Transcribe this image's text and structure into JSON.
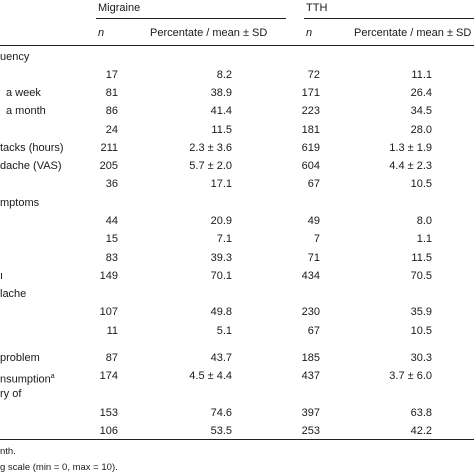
{
  "header": {
    "group1": "Migraine",
    "group2": "TTH",
    "n_label": "n",
    "stat_label": "Percentate / mean ± SD"
  },
  "rows": [
    {
      "label": "uency",
      "indent": false,
      "m_n": "",
      "m_p": "",
      "t_n": "",
      "t_p": ""
    },
    {
      "label": "",
      "indent": false,
      "m_n": "17",
      "m_p": "8.2",
      "t_n": "72",
      "t_p": "11.1"
    },
    {
      "label": "a week",
      "indent": true,
      "m_n": "81",
      "m_p": "38.9",
      "t_n": "171",
      "t_p": "26.4"
    },
    {
      "label": "a month",
      "indent": true,
      "m_n": "86",
      "m_p": "41.4",
      "t_n": "223",
      "t_p": "34.5"
    },
    {
      "label": "",
      "indent": false,
      "m_n": "24",
      "m_p": "11.5",
      "t_n": "181",
      "t_p": "28.0"
    },
    {
      "label": "tacks (hours)",
      "indent": false,
      "m_n": "211",
      "m_p": "2.3 ± 3.6",
      "t_n": "619",
      "t_p": "1.3 ± 1.9"
    },
    {
      "label": "dache (VAS)",
      "indent": false,
      "m_n": "205",
      "m_p": "5.7 ± 2.0",
      "t_n": "604",
      "t_p": "4.4 ± 2.3"
    },
    {
      "label": "",
      "indent": false,
      "m_n": "36",
      "m_p": "17.1",
      "t_n": "67",
      "t_p": "10.5"
    },
    {
      "label": "mptoms",
      "indent": false,
      "m_n": "",
      "m_p": "",
      "t_n": "",
      "t_p": ""
    },
    {
      "label": "",
      "indent": false,
      "m_n": "44",
      "m_p": "20.9",
      "t_n": "49",
      "t_p": "8.0"
    },
    {
      "label": "",
      "indent": false,
      "m_n": "15",
      "m_p": "7.1",
      "t_n": "7",
      "t_p": "1.1"
    },
    {
      "label": "",
      "indent": false,
      "m_n": "83",
      "m_p": "39.3",
      "t_n": "71",
      "t_p": "11.5"
    },
    {
      "label": "ı",
      "indent": false,
      "m_n": "149",
      "m_p": "70.1",
      "t_n": "434",
      "t_p": "70.5"
    },
    {
      "label": "lache",
      "indent": false,
      "m_n": "",
      "m_p": "",
      "t_n": "",
      "t_p": ""
    },
    {
      "label": "",
      "indent": false,
      "m_n": "107",
      "m_p": "49.8",
      "t_n": "230",
      "t_p": "35.9"
    },
    {
      "label": "",
      "indent": false,
      "m_n": "11",
      "m_p": "5.1",
      "t_n": "67",
      "t_p": "10.5"
    },
    {
      "label": "problem",
      "indent": false,
      "m_n": "87",
      "m_p": "43.7",
      "t_n": "185",
      "t_p": "30.3"
    },
    {
      "label": "nsumption",
      "sup": "a",
      "indent": false,
      "m_n": "174",
      "m_p": "4.5 ± 4.4",
      "t_n": "437",
      "t_p": "3.7 ± 6.0"
    },
    {
      "label": "ry of",
      "indent": false,
      "m_n": "",
      "m_p": "",
      "t_n": "",
      "t_p": ""
    },
    {
      "label": "",
      "indent": false,
      "m_n": "153",
      "m_p": "74.6",
      "t_n": "397",
      "t_p": "63.8"
    },
    {
      "label": "",
      "indent": false,
      "m_n": "106",
      "m_p": "53.5",
      "t_n": "253",
      "t_p": "42.2"
    }
  ],
  "footnotes": [
    "nth.",
    "g scale (min = 0, max = 10)."
  ]
}
